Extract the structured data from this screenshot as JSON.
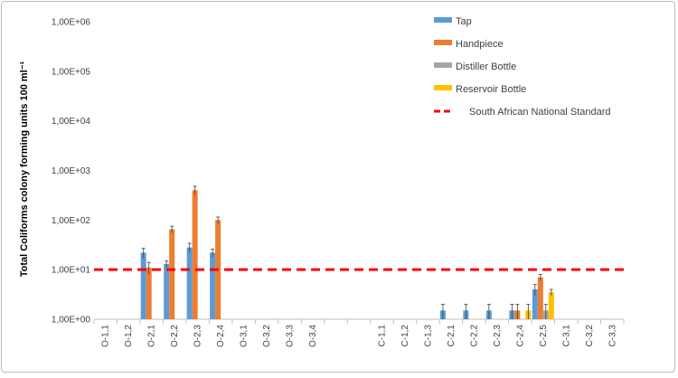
{
  "chart_data": {
    "type": "bar",
    "ylabel": "Total Coliforms colony forming units 100 ml⁻¹",
    "xlabel": "",
    "y_scale": "log",
    "ylim": [
      1,
      1000000
    ],
    "yticks": [
      {
        "value": 1,
        "label": "1,00E+00"
      },
      {
        "value": 10,
        "label": "1,00E+01"
      },
      {
        "value": 100,
        "label": "1,00E+02"
      },
      {
        "value": 1000,
        "label": "1,00E+03"
      },
      {
        "value": 10000,
        "label": "1,00E+04"
      },
      {
        "value": 100000,
        "label": "1,00E+05"
      },
      {
        "value": 1000000,
        "label": "1,00E+06"
      }
    ],
    "grid": false,
    "legend_position": "top-right",
    "categories": [
      "O-1,1",
      "O-1,2",
      "O-2,1",
      "O-2,2",
      "O-2,3",
      "O-2,4",
      "O-3,1",
      "O-3,2",
      "O-3,3",
      "O-3,4",
      "",
      "",
      "C-1,1",
      "C-1,2",
      "C-1,3",
      "C-2,1",
      "C-2,2",
      "C-2,3",
      "C-2,4",
      "C-2,5",
      "C-3,1",
      "C-3,2",
      "C-3,3"
    ],
    "series": [
      {
        "name": "Tap",
        "color": "#5b9bd5",
        "values": [
          null,
          null,
          22,
          13,
          28,
          22,
          null,
          null,
          null,
          null,
          null,
          null,
          null,
          null,
          null,
          1.5,
          1.5,
          1.5,
          1.5,
          4,
          null,
          null,
          null
        ],
        "errors": [
          null,
          null,
          5,
          2,
          6,
          4,
          null,
          null,
          null,
          null,
          null,
          null,
          null,
          null,
          null,
          0.5,
          0.5,
          0.5,
          0.5,
          1,
          null,
          null,
          null
        ]
      },
      {
        "name": "Handpiece",
        "color": "#ed7d31",
        "values": [
          null,
          null,
          11,
          65,
          400,
          100,
          null,
          null,
          null,
          null,
          null,
          null,
          null,
          null,
          null,
          null,
          null,
          null,
          1.5,
          7,
          null,
          null,
          null
        ],
        "errors": [
          null,
          null,
          3,
          10,
          80,
          15,
          null,
          null,
          null,
          null,
          null,
          null,
          null,
          null,
          null,
          null,
          null,
          null,
          0.5,
          1,
          null,
          null,
          null
        ]
      },
      {
        "name": "Distiller Bottle",
        "color": "#a5a5a5",
        "values": [
          null,
          null,
          null,
          null,
          null,
          null,
          null,
          null,
          null,
          null,
          null,
          null,
          null,
          null,
          null,
          null,
          null,
          null,
          null,
          1.5,
          null,
          null,
          null
        ],
        "errors": [
          null,
          null,
          null,
          null,
          null,
          null,
          null,
          null,
          null,
          null,
          null,
          null,
          null,
          null,
          null,
          null,
          null,
          null,
          null,
          0.5,
          null,
          null,
          null
        ]
      },
      {
        "name": "Reservoir Bottle",
        "color": "#ffc000",
        "values": [
          null,
          null,
          null,
          null,
          null,
          null,
          null,
          null,
          null,
          null,
          null,
          null,
          null,
          null,
          null,
          null,
          null,
          null,
          1.5,
          3.5,
          null,
          null,
          null
        ],
        "errors": [
          null,
          null,
          null,
          null,
          null,
          null,
          null,
          null,
          null,
          null,
          null,
          null,
          null,
          null,
          null,
          null,
          null,
          null,
          0.5,
          0.5,
          null,
          null,
          null
        ]
      }
    ],
    "reference_line": {
      "name": "South African National Standard",
      "value": 10,
      "color": "#ff0000"
    }
  }
}
